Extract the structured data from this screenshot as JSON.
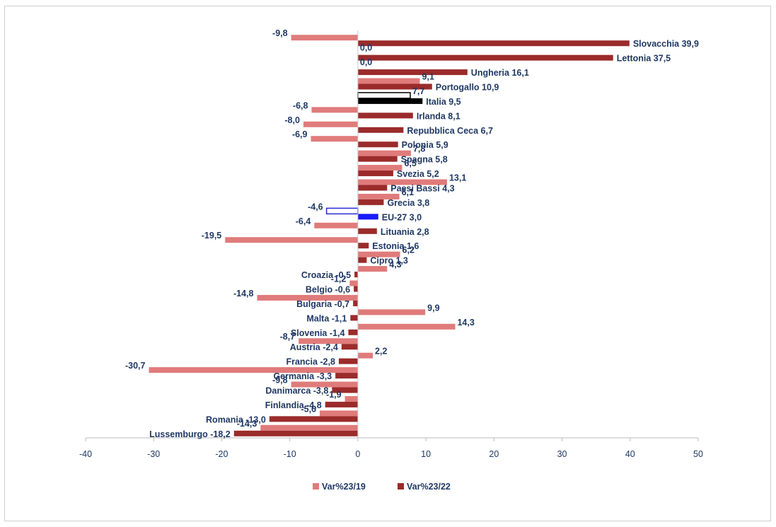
{
  "chart_data": {
    "type": "bar",
    "orientation": "horizontal",
    "categories": [
      "Slovacchia",
      "Lettonia",
      "Ungheria",
      "Portogallo",
      "Italia",
      "Irlanda",
      "Repubblica Ceca",
      "Polonia",
      "Spagna",
      "Svezia",
      "Paesi Bassi",
      "Grecia",
      "EU-27",
      "Lituania",
      "Estonia",
      "Cipro",
      "Croazia",
      "Belgio",
      "Bulgaria",
      "Malta",
      "Slovenia",
      "Austria",
      "Francia",
      "Germania",
      "Danimarca",
      "Finlandia",
      "Romania",
      "Lussemburgo"
    ],
    "series": [
      {
        "name": "Var%23/19",
        "color": "#e07b7b",
        "values": [
          -9.8,
          0.0,
          0.0,
          9.1,
          7.7,
          -6.8,
          -8.0,
          -6.9,
          7.8,
          6.5,
          13.1,
          6.1,
          -4.6,
          -6.4,
          -19.5,
          6.2,
          4.3,
          -1.2,
          -14.8,
          9.9,
          14.3,
          -8.7,
          2.2,
          -30.7,
          -9.8,
          -1.9,
          -5.6,
          -14.3
        ],
        "labels": [
          "-9,8",
          "0,0",
          "0,0",
          "9,1",
          "7,7",
          "-6,8",
          "-8,0",
          "-6,9",
          "7,8",
          "6,5",
          "13,1",
          "6,1",
          "-4,6",
          "-6,4",
          "-19,5",
          "6,2",
          "4,3",
          "-1,2",
          "-14,8",
          "9,9",
          "14,3",
          "-8,7",
          "2,2",
          "-30,7",
          "-9,8",
          "-1,9",
          "-5,6",
          "-14,3"
        ]
      },
      {
        "name": "Var%23/22",
        "color": "#9b2b2b",
        "values": [
          39.9,
          37.5,
          16.1,
          10.9,
          9.5,
          8.1,
          6.7,
          5.9,
          5.8,
          5.2,
          4.3,
          3.8,
          3.0,
          2.8,
          1.6,
          1.3,
          -0.5,
          -0.6,
          -0.7,
          -1.1,
          -1.4,
          -2.4,
          -2.8,
          -3.3,
          -3.8,
          -4.8,
          -13.0,
          -18.2
        ],
        "labels": [
          "Slovacchia 39,9",
          "Lettonia 37,5",
          "Ungheria 16,1",
          "Portogallo 10,9",
          "Italia 9,5",
          "Irlanda 8,1",
          "Repubblica Ceca 6,7",
          "Polonia 5,9",
          "Spagna 5,8",
          "Svezia 5,2",
          "Paesi Bassi 4,3",
          "Grecia 3,8",
          "EU-27 3,0",
          "Lituania 2,8",
          "Estonia 1,6",
          "Cipro 1,3",
          "Croazia -0,5",
          "Belgio -0,6",
          "Bulgaria -0,7",
          "Malta -1,1",
          "Slovenia -1,4",
          "Austria -2,4",
          "Francia -2,8",
          "Germania -3,3",
          "Danimarca -3,8",
          "Finlandia -4,8",
          "Romania -13,0",
          "Lussemburgo -18,2"
        ]
      }
    ],
    "highlight": {
      "Italia": {
        "series1_fill": "#ffffff",
        "series1_stroke": "#000000",
        "series2_fill": "#000000"
      },
      "EU-27": {
        "series1_fill": "#ffffff",
        "series1_stroke": "#2b2bd6",
        "series2_fill": "#1a1aff"
      }
    },
    "xlim": [
      -40,
      50
    ],
    "xticks": [
      -40,
      -30,
      -20,
      -10,
      0,
      10,
      20,
      30,
      40,
      50
    ],
    "grid": false,
    "legend_position": "bottom"
  }
}
